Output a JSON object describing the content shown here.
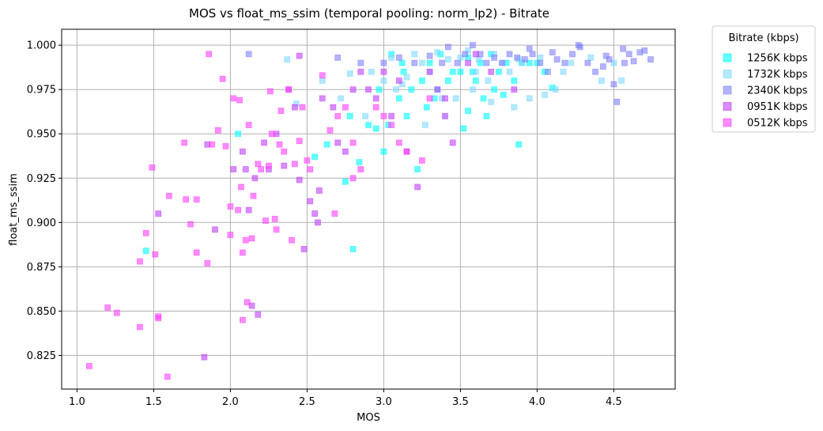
{
  "chart_data": {
    "type": "scatter",
    "title": "MOS vs float_ms_ssim (temporal pooling: norm_lp2) - Bitrate",
    "xlabel": "MOS",
    "ylabel": "float_ms_ssim",
    "xlim": [
      0.9,
      4.9
    ],
    "ylim": [
      0.806,
      1.009
    ],
    "xticks": [
      1.0,
      1.5,
      2.0,
      2.5,
      3.0,
      3.5,
      4.0,
      4.5
    ],
    "xtick_labels": [
      "1.0",
      "1.5",
      "2.0",
      "2.5",
      "3.0",
      "3.5",
      "4.0",
      "4.5"
    ],
    "yticks": [
      0.825,
      0.85,
      0.875,
      0.9,
      0.925,
      0.95,
      0.975,
      1.0
    ],
    "ytick_labels": [
      "0.825",
      "0.850",
      "0.875",
      "0.900",
      "0.925",
      "0.950",
      "0.975",
      "1.000"
    ],
    "grid": true,
    "marker": "square",
    "legend": {
      "title": "Bitrate (kbps)",
      "placement": "outside-right-top"
    },
    "series": [
      {
        "name": "1256K kbps",
        "color": "#00ffff",
        "points": [
          [
            1.45,
            0.884
          ],
          [
            2.05,
            0.95
          ],
          [
            2.55,
            0.937
          ],
          [
            2.63,
            0.944
          ],
          [
            2.75,
            0.923
          ],
          [
            2.8,
            0.885
          ],
          [
            2.84,
            0.934
          ],
          [
            2.9,
            0.955
          ],
          [
            2.95,
            0.953
          ],
          [
            3.0,
            0.94
          ],
          [
            3.03,
            0.955
          ],
          [
            3.1,
            0.97
          ],
          [
            3.13,
            0.985
          ],
          [
            3.18,
            0.975
          ],
          [
            3.22,
            0.93
          ],
          [
            3.25,
            0.98
          ],
          [
            3.3,
            0.99
          ],
          [
            3.33,
            0.97
          ],
          [
            3.35,
            0.975
          ],
          [
            3.4,
            0.96
          ],
          [
            3.45,
            0.985
          ],
          [
            3.5,
            0.985
          ],
          [
            3.52,
            0.953
          ],
          [
            3.55,
            0.963
          ],
          [
            3.58,
            0.985
          ],
          [
            3.6,
            0.98
          ],
          [
            3.63,
            0.99
          ],
          [
            3.65,
            0.97
          ],
          [
            3.7,
            0.995
          ],
          [
            3.72,
            0.975
          ],
          [
            3.75,
            0.985
          ],
          [
            3.8,
            0.99
          ],
          [
            3.85,
            0.98
          ],
          [
            3.88,
            0.944
          ],
          [
            3.9,
            0.99
          ],
          [
            3.95,
            0.99
          ],
          [
            4.0,
            0.99
          ],
          [
            4.05,
            0.985
          ],
          [
            4.1,
            0.976
          ],
          [
            3.37,
            0.995
          ],
          [
            3.12,
            0.99
          ],
          [
            3.28,
            0.965
          ],
          [
            3.15,
            0.96
          ],
          [
            3.55,
            0.993
          ],
          [
            3.05,
            0.995
          ],
          [
            2.97,
            0.975
          ],
          [
            3.42,
            0.98
          ],
          [
            3.67,
            0.96
          ],
          [
            3.78,
            0.972
          ],
          [
            2.78,
            0.96
          ]
        ]
      },
      {
        "name": "1732K kbps",
        "color": "#80d8ff",
        "points": [
          [
            2.37,
            0.992
          ],
          [
            2.43,
            0.967
          ],
          [
            2.6,
            0.98
          ],
          [
            2.72,
            0.97
          ],
          [
            2.78,
            0.984
          ],
          [
            2.88,
            0.96
          ],
          [
            2.92,
            0.985
          ],
          [
            3.0,
            0.98
          ],
          [
            3.05,
            0.993
          ],
          [
            3.08,
            0.975
          ],
          [
            3.15,
            0.982
          ],
          [
            3.2,
            0.995
          ],
          [
            3.27,
            0.955
          ],
          [
            3.3,
            0.985
          ],
          [
            3.38,
            0.97
          ],
          [
            3.42,
            0.992
          ],
          [
            3.47,
            0.97
          ],
          [
            3.5,
            0.993
          ],
          [
            3.55,
            0.997
          ],
          [
            3.58,
            0.975
          ],
          [
            3.62,
            0.992
          ],
          [
            3.68,
            0.98
          ],
          [
            3.72,
            0.995
          ],
          [
            3.78,
            0.99
          ],
          [
            3.82,
            0.985
          ],
          [
            3.85,
            0.965
          ],
          [
            3.9,
            0.99
          ],
          [
            3.95,
            0.97
          ],
          [
            4.02,
            0.993
          ],
          [
            4.05,
            0.972
          ],
          [
            4.12,
            0.975
          ],
          [
            4.17,
            0.985
          ],
          [
            4.22,
            0.99
          ],
          [
            4.35,
            0.993
          ],
          [
            4.42,
            0.98
          ],
          [
            4.5,
            0.99
          ],
          [
            4.55,
            0.98
          ],
          [
            3.35,
            0.996
          ],
          [
            3.6,
            0.985
          ],
          [
            3.12,
            0.978
          ],
          [
            3.88,
            0.992
          ],
          [
            3.7,
            0.968
          ],
          [
            3.25,
            0.99
          ]
        ]
      },
      {
        "name": "2340K kbps",
        "color": "#8080ff",
        "points": [
          [
            2.12,
            0.995
          ],
          [
            2.7,
            0.993
          ],
          [
            2.85,
            0.99
          ],
          [
            3.0,
            0.99
          ],
          [
            3.1,
            0.993
          ],
          [
            3.2,
            0.99
          ],
          [
            3.3,
            0.994
          ],
          [
            3.38,
            0.99
          ],
          [
            3.42,
            0.999
          ],
          [
            3.48,
            0.99
          ],
          [
            3.53,
            0.995
          ],
          [
            3.58,
            1.0
          ],
          [
            3.63,
            0.995
          ],
          [
            3.67,
            0.99
          ],
          [
            3.72,
            0.993
          ],
          [
            3.77,
            0.99
          ],
          [
            3.82,
            0.995
          ],
          [
            3.87,
            0.993
          ],
          [
            3.92,
            0.992
          ],
          [
            3.97,
            0.995
          ],
          [
            4.02,
            0.99
          ],
          [
            4.07,
            0.985
          ],
          [
            4.13,
            0.992
          ],
          [
            4.18,
            0.99
          ],
          [
            4.23,
            0.995
          ],
          [
            4.28,
            0.999
          ],
          [
            4.33,
            0.99
          ],
          [
            4.38,
            0.985
          ],
          [
            4.43,
            0.988
          ],
          [
            4.47,
            0.992
          ],
          [
            4.5,
            0.978
          ],
          [
            4.52,
            0.968
          ],
          [
            4.56,
            0.998
          ],
          [
            4.6,
            0.995
          ],
          [
            4.63,
            0.991
          ],
          [
            4.67,
            0.996
          ],
          [
            4.7,
            0.997
          ],
          [
            4.74,
            0.992
          ],
          [
            4.27,
            1.0
          ],
          [
            4.45,
            0.994
          ],
          [
            4.57,
            0.99
          ],
          [
            3.95,
            0.998
          ],
          [
            4.1,
            0.996
          ]
        ]
      },
      {
        "name": "0951K kbps",
        "color": "#bf40ff",
        "points": [
          [
            1.53,
            0.905
          ],
          [
            1.83,
            0.824
          ],
          [
            1.85,
            0.944
          ],
          [
            1.9,
            0.896
          ],
          [
            2.02,
            0.93
          ],
          [
            2.08,
            0.94
          ],
          [
            2.1,
            0.93
          ],
          [
            2.12,
            0.907
          ],
          [
            2.14,
            0.853
          ],
          [
            2.16,
            0.925
          ],
          [
            2.18,
            0.848
          ],
          [
            2.22,
            0.945
          ],
          [
            2.25,
            0.93
          ],
          [
            2.3,
            0.95
          ],
          [
            2.35,
            0.932
          ],
          [
            2.38,
            0.975
          ],
          [
            2.42,
            0.965
          ],
          [
            2.45,
            0.924
          ],
          [
            2.45,
            0.994
          ],
          [
            2.52,
            0.912
          ],
          [
            2.55,
            0.905
          ],
          [
            2.57,
            0.9
          ],
          [
            2.6,
            0.97
          ],
          [
            2.67,
            0.965
          ],
          [
            2.7,
            0.945
          ],
          [
            2.75,
            0.94
          ],
          [
            2.8,
            0.975
          ],
          [
            2.85,
            0.985
          ],
          [
            2.9,
            0.975
          ],
          [
            2.95,
            0.97
          ],
          [
            3.0,
            0.985
          ],
          [
            3.05,
            0.96
          ],
          [
            3.1,
            0.98
          ],
          [
            3.15,
            0.94
          ],
          [
            3.22,
            0.92
          ],
          [
            3.3,
            0.985
          ],
          [
            3.35,
            0.975
          ],
          [
            3.4,
            0.97
          ],
          [
            3.45,
            0.945
          ],
          [
            3.55,
            0.99
          ],
          [
            3.6,
            0.995
          ],
          [
            3.7,
            0.985
          ],
          [
            3.85,
            0.975
          ],
          [
            2.58,
            0.918
          ],
          [
            2.48,
            0.885
          ]
        ]
      },
      {
        "name": "0512K kbps",
        "color": "#ff40ff",
        "points": [
          [
            1.08,
            0.819
          ],
          [
            1.2,
            0.852
          ],
          [
            1.26,
            0.849
          ],
          [
            1.41,
            0.841
          ],
          [
            1.41,
            0.878
          ],
          [
            1.45,
            0.894
          ],
          [
            1.49,
            0.931
          ],
          [
            1.51,
            0.882
          ],
          [
            1.53,
            0.847
          ],
          [
            1.53,
            0.846
          ],
          [
            1.59,
            0.813
          ],
          [
            1.6,
            0.915
          ],
          [
            1.7,
            0.945
          ],
          [
            1.71,
            0.913
          ],
          [
            1.74,
            0.899
          ],
          [
            1.78,
            0.913
          ],
          [
            1.78,
            0.883
          ],
          [
            1.86,
            0.995
          ],
          [
            1.85,
            0.877
          ],
          [
            1.88,
            0.944
          ],
          [
            1.92,
            0.952
          ],
          [
            1.95,
            0.981
          ],
          [
            1.97,
            0.943
          ],
          [
            2.0,
            0.893
          ],
          [
            2.0,
            0.909
          ],
          [
            2.02,
            0.97
          ],
          [
            2.05,
            0.907
          ],
          [
            2.06,
            0.969
          ],
          [
            2.07,
            0.92
          ],
          [
            2.08,
            0.883
          ],
          [
            2.08,
            0.845
          ],
          [
            2.1,
            0.89
          ],
          [
            2.11,
            0.855
          ],
          [
            2.12,
            0.955
          ],
          [
            2.14,
            0.891
          ],
          [
            2.15,
            0.915
          ],
          [
            2.18,
            0.933
          ],
          [
            2.2,
            0.93
          ],
          [
            2.23,
            0.901
          ],
          [
            2.25,
            0.932
          ],
          [
            2.26,
            0.974
          ],
          [
            2.27,
            0.95
          ],
          [
            2.29,
            0.902
          ],
          [
            2.32,
            0.944
          ],
          [
            2.33,
            0.963
          ],
          [
            2.35,
            0.94
          ],
          [
            2.38,
            0.975
          ],
          [
            2.4,
            0.89
          ],
          [
            2.42,
            0.933
          ],
          [
            2.45,
            0.946
          ],
          [
            2.47,
            0.965
          ],
          [
            2.5,
            0.935
          ],
          [
            2.52,
            0.93
          ],
          [
            2.6,
            0.983
          ],
          [
            2.65,
            0.952
          ],
          [
            2.7,
            0.96
          ],
          [
            2.75,
            0.965
          ],
          [
            2.8,
            0.945
          ],
          [
            2.85,
            0.93
          ],
          [
            2.95,
            0.965
          ],
          [
            3.0,
            0.96
          ],
          [
            3.05,
            0.955
          ],
          [
            3.1,
            0.945
          ],
          [
            3.15,
            0.94
          ],
          [
            3.25,
            0.935
          ],
          [
            3.3,
            0.97
          ],
          [
            3.4,
            0.96
          ],
          [
            2.3,
            0.896
          ],
          [
            2.8,
            0.925
          ],
          [
            2.68,
            0.905
          ]
        ]
      }
    ]
  }
}
